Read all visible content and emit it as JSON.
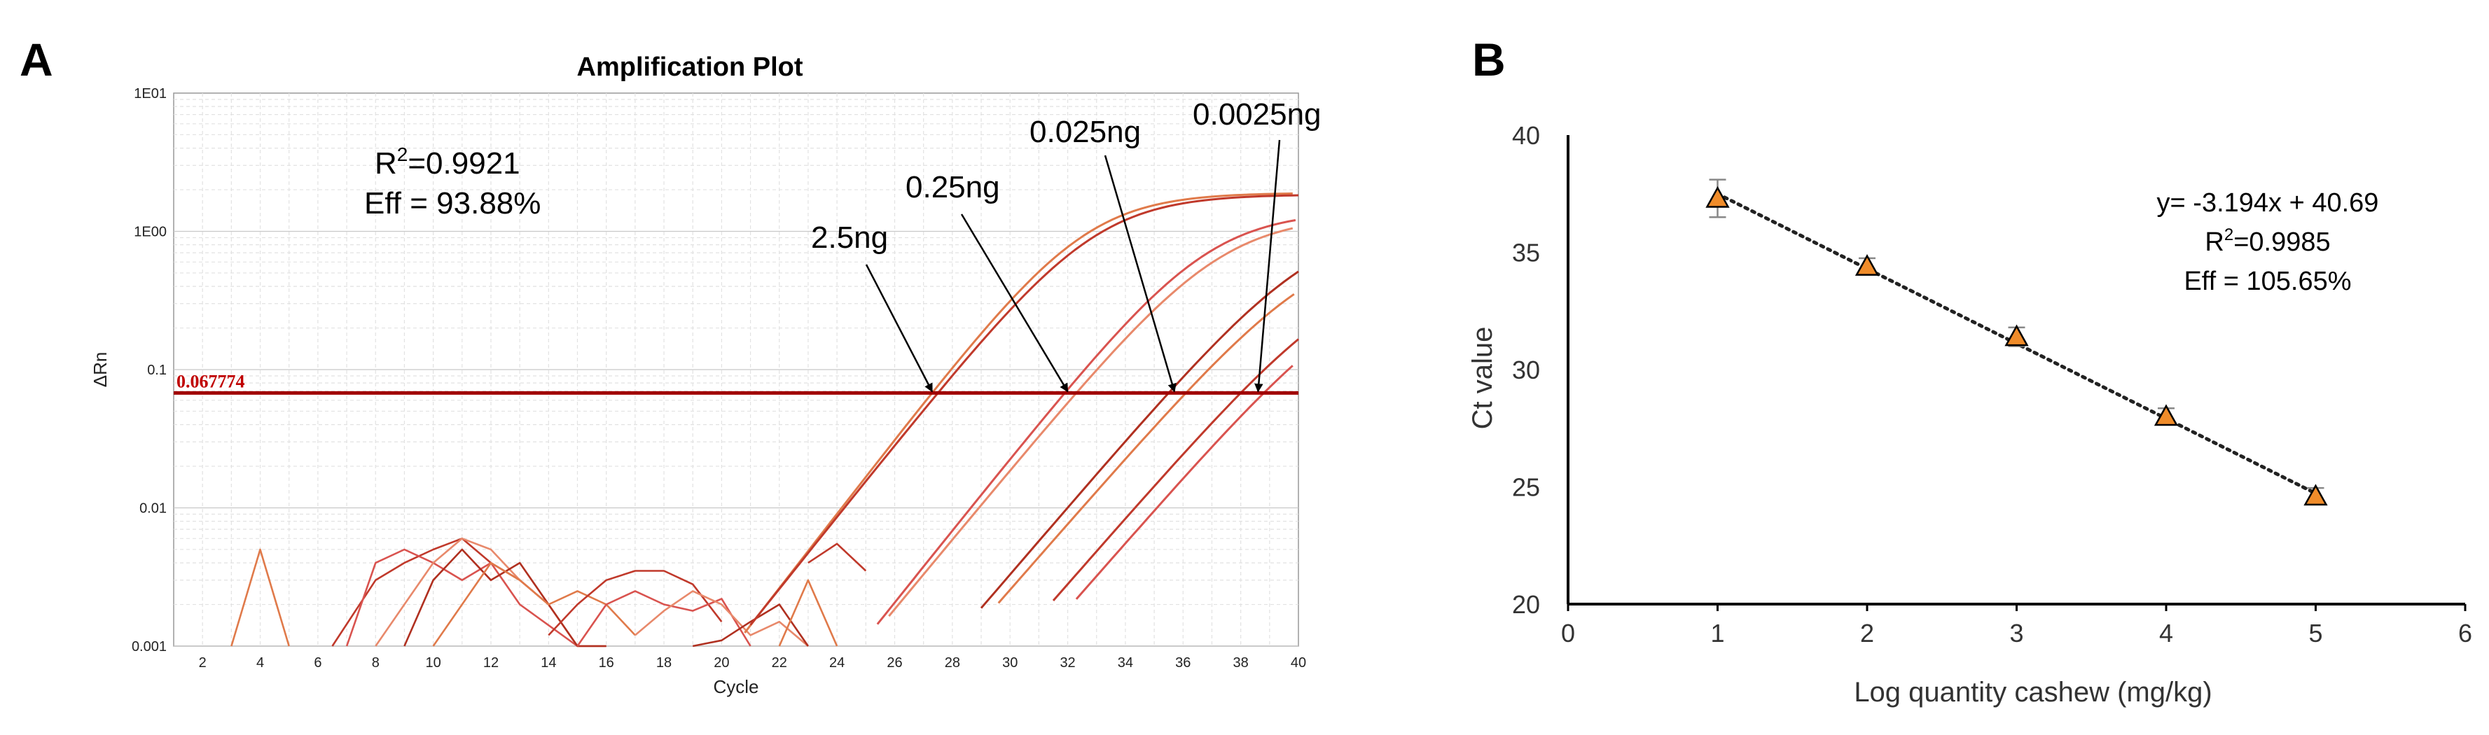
{
  "chart_data": [
    {
      "panel": "A",
      "type": "line",
      "title": "Amplification Plot",
      "xlabel": "Cycle",
      "ylabel": "ΔRn",
      "xlim": [
        1,
        40
      ],
      "ylim_log": [
        0.001,
        10
      ],
      "x_ticks": [
        "2",
        "4",
        "6",
        "8",
        "10",
        "12",
        "14",
        "16",
        "18",
        "20",
        "22",
        "24",
        "26",
        "28",
        "30",
        "32",
        "34",
        "36",
        "38",
        "40"
      ],
      "y_ticks": [
        {
          "value": 10,
          "label": "1E01"
        },
        {
          "value": 1,
          "label": "1E00"
        },
        {
          "value": 0.1,
          "label": "0.1"
        },
        {
          "value": 0.01,
          "label": "0.01"
        },
        {
          "value": 0.001,
          "label": "0.001"
        }
      ],
      "threshold": {
        "value": 0.067774,
        "label": "0.067774",
        "color": "#a00000"
      },
      "stats": {
        "r2_prefix": "R",
        "r2_sup": "2",
        "r2_value": "=0.9921",
        "eff": "Eff = 93.88%"
      },
      "curve_colors": [
        "#e07a4a",
        "#c0392b",
        "#d9534f",
        "#e8896b",
        "#b03020"
      ],
      "amplification_curves": [
        {
          "ct": 27.3,
          "plateau": 1.9,
          "k": 0.62
        },
        {
          "ct": 27.5,
          "plateau": 1.85,
          "k": 0.6
        },
        {
          "ct": 31.9,
          "plateau": 1.4,
          "k": 0.6
        },
        {
          "ct": 32.3,
          "plateau": 1.3,
          "k": 0.58
        },
        {
          "ct": 35.5,
          "plateau": 1.2,
          "k": 0.56
        },
        {
          "ct": 36.1,
          "plateau": 0.9,
          "k": 0.55
        },
        {
          "ct": 38.0,
          "plateau": 0.6,
          "k": 0.55
        },
        {
          "ct": 38.8,
          "plateau": 0.5,
          "k": 0.55
        }
      ],
      "noise_traces": [
        {
          "x": [
            3,
            4,
            5
          ],
          "y": [
            0.0009,
            0.005,
            0.0009
          ]
        },
        {
          "x": [
            6.5,
            8,
            9,
            10,
            11,
            12,
            13,
            14
          ],
          "y": [
            0.0009,
            0.003,
            0.004,
            0.005,
            0.006,
            0.004,
            0.003,
            0.002
          ]
        },
        {
          "x": [
            7,
            8,
            9,
            10,
            11,
            12,
            13,
            15,
            16
          ],
          "y": [
            0.0009,
            0.004,
            0.005,
            0.004,
            0.003,
            0.004,
            0.002,
            0.001,
            0.0009
          ]
        },
        {
          "x": [
            8,
            9,
            10,
            11,
            12,
            13,
            14,
            15
          ],
          "y": [
            0.0009,
            0.002,
            0.004,
            0.006,
            0.005,
            0.003,
            0.002,
            0.001
          ]
        },
        {
          "x": [
            9,
            10,
            11,
            12,
            13,
            14,
            15,
            16
          ],
          "y": [
            0.0009,
            0.003,
            0.005,
            0.003,
            0.004,
            0.002,
            0.001,
            0.0009
          ]
        },
        {
          "x": [
            10,
            11,
            12,
            13,
            14,
            15,
            16,
            17
          ],
          "y": [
            0.0009,
            0.002,
            0.004,
            0.003,
            0.002,
            0.0025,
            0.002,
            0.0012
          ]
        },
        {
          "x": [
            14,
            15,
            16,
            17,
            18,
            19,
            20
          ],
          "y": [
            0.0012,
            0.002,
            0.003,
            0.0035,
            0.0035,
            0.0028,
            0.0015
          ]
        },
        {
          "x": [
            15,
            16,
            17,
            18,
            19,
            20,
            21
          ],
          "y": [
            0.0009,
            0.002,
            0.0025,
            0.002,
            0.0018,
            0.0022,
            0.0009
          ]
        },
        {
          "x": [
            17,
            18,
            19,
            20,
            21,
            22,
            23
          ],
          "y": [
            0.0012,
            0.0018,
            0.0025,
            0.002,
            0.0012,
            0.0015,
            0.0009
          ]
        },
        {
          "x": [
            19,
            20,
            21,
            22,
            23
          ],
          "y": [
            0.0009,
            0.0011,
            0.0015,
            0.002,
            0.0009
          ]
        },
        {
          "x": [
            22,
            23,
            24
          ],
          "y": [
            0.0009,
            0.003,
            0.0009
          ]
        },
        {
          "x": [
            23,
            24,
            25
          ],
          "y": [
            0.004,
            0.0055,
            0.0035
          ]
        }
      ],
      "annotations": [
        {
          "label": "2.5ng",
          "target_x": 27.3
        },
        {
          "label": "0.25ng",
          "target_x": 32.0
        },
        {
          "label": "0.025ng",
          "target_x": 35.7
        },
        {
          "label": "0.0025ng",
          "target_x": 38.6
        }
      ]
    },
    {
      "panel": "B",
      "type": "scatter",
      "xlabel": "Log quantity cashew (mg/kg)",
      "ylabel": "Ct value",
      "xlim": [
        0,
        6
      ],
      "ylim": [
        20,
        40
      ],
      "x_ticks": [
        "0",
        "1",
        "2",
        "3",
        "4",
        "5",
        "6"
      ],
      "y_ticks": [
        "20",
        "25",
        "30",
        "35",
        "40"
      ],
      "points": [
        {
          "x": 1,
          "y": 37.3,
          "err": 0.8
        },
        {
          "x": 2,
          "y": 34.4,
          "err": 0.35
        },
        {
          "x": 3,
          "y": 31.4,
          "err": 0.4
        },
        {
          "x": 4,
          "y": 28.0,
          "err": 0.35
        },
        {
          "x": 5,
          "y": 24.6,
          "err": 0.35
        }
      ],
      "trendline": {
        "slope": -3.194,
        "intercept": 40.69,
        "x_range": [
          1,
          5
        ]
      },
      "marker_color": "#f08c2a",
      "equation": "y= -3.194x + 40.69",
      "r2_prefix": "R",
      "r2_sup": "2",
      "r2_value": "=0.9985",
      "eff": "Eff = 105.65%"
    }
  ],
  "panel_labels": {
    "a": "A",
    "b": "B"
  }
}
